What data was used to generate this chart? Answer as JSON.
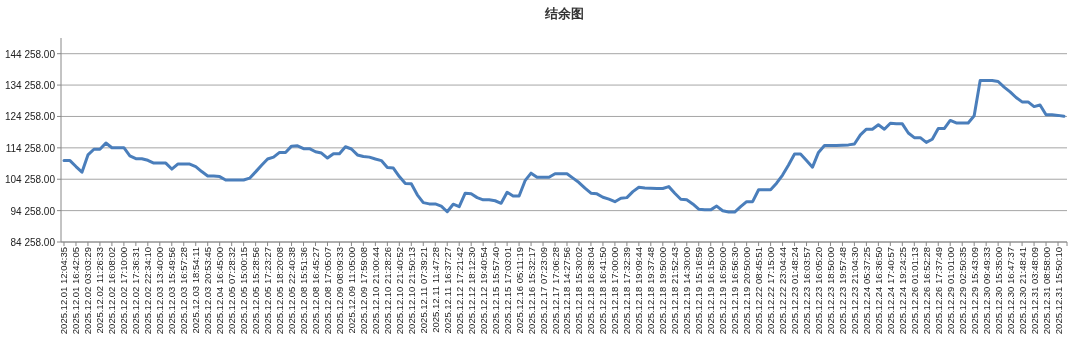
{
  "chart_data": {
    "type": "line",
    "title": "结余图",
    "categories": [
      "2025.12.01 12:04:35",
      null,
      "2025.12.01 16:42:05",
      null,
      "2025.12.02 03:03:29",
      null,
      "2025.12.02 11:26:33",
      null,
      "2025.12.02 16:08:02",
      null,
      "2025.12.02 17:10:00",
      null,
      "2025.12.02 17:36:31",
      null,
      "2025.12.02 22:34:10",
      null,
      "2025.12.03 13:40:00",
      null,
      "2025.12.03 15:49:56",
      null,
      "2025.12.03 16:57:28",
      null,
      "2025.12.03 18:54:11",
      null,
      "2025.12.03 20:53:45",
      null,
      "2025.12.04 16:45:00",
      null,
      "2025.12.05 07:28:32",
      null,
      "2025.12.05 15:00:15",
      null,
      "2025.12.05 15:28:56",
      null,
      "2025.12.05 17:23:27",
      null,
      "2025.12.05 18:20:08",
      null,
      "2025.12.05 22:40:38",
      null,
      "2025.12.08 15:51:36",
      null,
      "2025.12.08 16:45:27",
      null,
      "2025.12.08 17:05:07",
      null,
      "2025.12.09 08:09:33",
      null,
      "2025.12.09 11:05:00",
      null,
      "2025.12.09 17:59:08",
      null,
      "2025.12.10 21:00:44",
      null,
      "2025.12.10 21:28:26",
      null,
      "2025.12.10 21:40:52",
      null,
      "2025.12.10 21:50:13",
      null,
      "2025.12.11 07:39:21",
      null,
      "2025.12.11 11:47:28",
      null,
      "2025.12.11 16:37:27",
      null,
      "2025.12.12 17:21:42",
      null,
      "2025.12.12 18:12:30",
      null,
      "2025.12.12 19:40:54",
      null,
      "2025.12.15 15:57:40",
      null,
      "2025.12.15 17:03:01",
      null,
      "2025.12.16 05:11:19",
      null,
      "2025.12.16 15:32:17",
      null,
      "2025.12.17 07:23:09",
      null,
      "2025.12.17 17:06:28",
      null,
      "2025.12.18 14:27:56",
      null,
      "2025.12.18 15:30:02",
      null,
      "2025.12.18 16:38:04",
      null,
      "2025.12.18 16:41:50",
      null,
      "2025.12.18 17:00:00",
      null,
      "2025.12.18 17:32:39",
      null,
      "2025.12.18 19:09:44",
      null,
      "2025.12.18 19:37:48",
      null,
      "2025.12.18 19:50:00",
      null,
      "2025.12.18 21:52:43",
      null,
      "2025.12.19 14:30:00",
      null,
      "2025.12.19 15:16:59",
      null,
      "2025.12.19 16:15:00",
      null,
      "2025.12.19 16:50:00",
      null,
      "2025.12.19 16:56:30",
      null,
      "2025.12.19 20:50:00",
      null,
      "2025.12.22 08:45:51",
      null,
      "2025.12.22 17:15:00",
      null,
      "2025.12.22 23:04:44",
      null,
      "2025.12.23 01:48:24",
      null,
      "2025.12.23 16:03:57",
      null,
      "2025.12.23 16:05:20",
      null,
      "2025.12.23 18:50:00",
      null,
      "2025.12.23 19:57:48",
      null,
      "2025.12.23 21:04:30",
      null,
      "2025.12.24 05:37:25",
      null,
      "2025.12.24 16:36:50",
      null,
      "2025.12.24 17:40:57",
      null,
      "2025.12.24 19:24:25",
      null,
      "2025.12.26 01:01:13",
      null,
      "2025.12.26 16:52:28",
      null,
      "2025.12.26 17:37:49",
      null,
      "2025.12.29 01:01:00",
      null,
      "2025.12.29 02:50:35",
      null,
      "2025.12.29 15:43:09",
      null,
      "2025.12.30 09:49:33",
      null,
      "2025.12.30 15:35:00",
      null,
      "2025.12.30 16:47:37",
      null,
      "2025.12.30 21:48:41",
      null,
      "2025.12.31 03:48:09",
      null,
      "2025.12.31 08:58:00",
      null,
      "2025.12.31 15:50:10",
      null
    ],
    "series": [
      {
        "color": "#4a7ebb",
        "values": [
          110200,
          110200,
          108300,
          106500,
          112000,
          113800,
          113800,
          115800,
          114300,
          114300,
          114300,
          111700,
          110800,
          110800,
          110300,
          109400,
          109400,
          109400,
          107500,
          109100,
          109100,
          109100,
          108300,
          106700,
          105300,
          105300,
          105100,
          104000,
          104000,
          104000,
          104000,
          104600,
          106600,
          108700,
          110700,
          111300,
          112800,
          112800,
          114800,
          114900,
          114000,
          114000,
          113000,
          112600,
          111000,
          112400,
          112400,
          114600,
          113900,
          112000,
          111500,
          111300,
          110700,
          110200,
          108000,
          107800,
          105100,
          102900,
          102800,
          99300,
          96800,
          96400,
          96400,
          95700,
          93900,
          96300,
          95500,
          99800,
          99600,
          98400,
          97700,
          97700,
          97400,
          96600,
          100100,
          98900,
          98900,
          103800,
          106200,
          104900,
          104900,
          104900,
          106000,
          106000,
          106000,
          104600,
          103200,
          101400,
          99800,
          99600,
          98500,
          97900,
          97100,
          98200,
          98400,
          100300,
          101700,
          101500,
          101400,
          101300,
          101300,
          101900,
          99800,
          97900,
          97700,
          96400,
          94700,
          94500,
          94500,
          95700,
          94200,
          93800,
          93800,
          95500,
          97100,
          97100,
          100900,
          100900,
          100900,
          103000,
          105600,
          108800,
          112300,
          112300,
          110200,
          108100,
          112800,
          115000,
          115000,
          115000,
          115100,
          115200,
          115500,
          118400,
          120200,
          120200,
          121600,
          120200,
          122100,
          121900,
          121900,
          119000,
          117500,
          117500,
          116000,
          117000,
          120400,
          120400,
          123000,
          122200,
          122200,
          122200,
          124500,
          135700,
          135700,
          135700,
          135400,
          133600,
          132100,
          130300,
          128900,
          128900,
          127400,
          127900,
          124800,
          124800,
          124600,
          124300
        ]
      }
    ],
    "ylim": [
      84258,
      149258
    ],
    "yticks": [
      {
        "value": 84258,
        "label": "84 258.00"
      },
      {
        "value": 94258,
        "label": "94 258.00"
      },
      {
        "value": 104258,
        "label": "104 258.00"
      },
      {
        "value": 114258,
        "label": "114 258.00"
      },
      {
        "value": 124258,
        "label": "124 258.00"
      },
      {
        "value": 134258,
        "label": "134 258.00"
      },
      {
        "value": 144258,
        "label": "144 258.00"
      }
    ],
    "grid": "y",
    "marker": "none",
    "line_style": "solid"
  }
}
